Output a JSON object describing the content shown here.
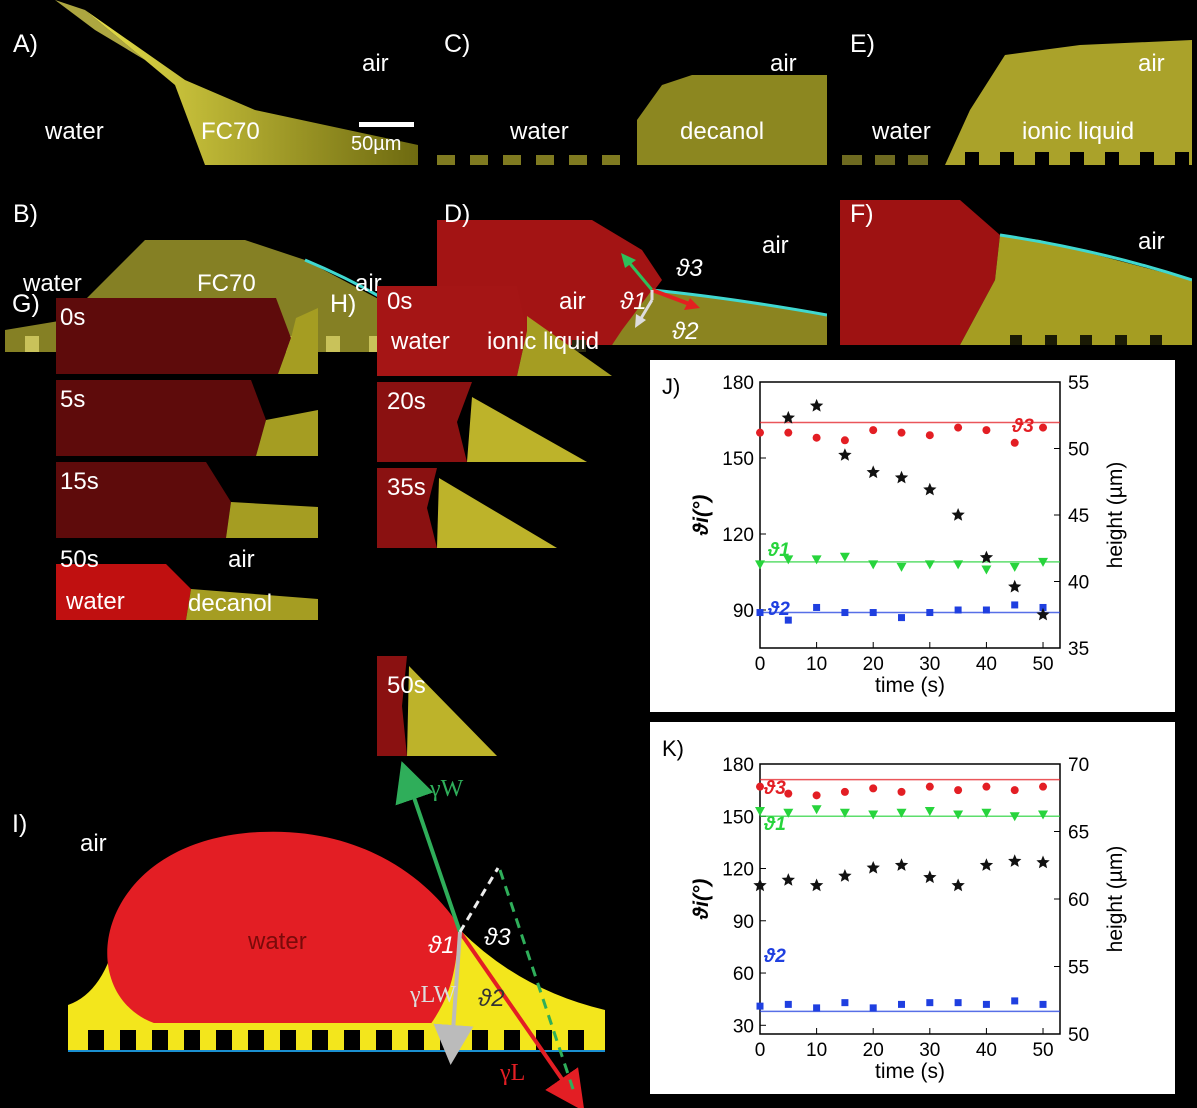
{
  "panels": {
    "A": {
      "label": "A)",
      "left_text": "water",
      "center_text": "FC70",
      "right_text": "air",
      "scale": "50µm"
    },
    "B": {
      "label": "B)",
      "left_text": "water",
      "center_text": "FC70",
      "right_text": "air"
    },
    "C": {
      "label": "C)",
      "left_text": "water",
      "center_text": "decanol",
      "right_text": "air"
    },
    "D": {
      "label": "D)",
      "right_text": "air",
      "t1": "ϑ1",
      "t2": "ϑ2",
      "t3": "ϑ3"
    },
    "E": {
      "label": "E)",
      "left_text": "water",
      "center_text": "ionic liquid",
      "right_text": "air"
    },
    "F": {
      "label": "F)",
      "right_text": "air"
    },
    "G": {
      "label": "G)",
      "times": [
        "0s",
        "5s",
        "15s",
        "50s"
      ],
      "air": "air",
      "water": "water",
      "liquid": "decanol"
    },
    "H": {
      "label": "H)",
      "times": [
        "0s",
        "20s",
        "35s",
        "50s"
      ],
      "air": "air",
      "water": "water",
      "liquid": "ionic liquid"
    },
    "I": {
      "label": "I)",
      "air": "air",
      "water": "water",
      "t1": "ϑ1",
      "t2": "ϑ2",
      "t3": "ϑ3",
      "gw": "γW",
      "glw": "γLW",
      "gl": "γL"
    }
  },
  "colors": {
    "red": "#e31e24",
    "yellow": "#f3e61c",
    "green": "#2fae5a",
    "gray": "#aaaaaa"
  },
  "chart_data": [
    {
      "panel": "J)",
      "type": "scatter",
      "xlabel": "time (s)",
      "ylabel": "ϑi(°)",
      "y2label": "height (µm)",
      "xlim": [
        0,
        53
      ],
      "ylim": [
        75,
        180
      ],
      "y2lim": [
        35,
        55
      ],
      "xticks": [
        0,
        10,
        20,
        30,
        40,
        50
      ],
      "yticks": [
        90,
        120,
        150,
        180
      ],
      "y2ticks": [
        35,
        40,
        45,
        50,
        55
      ],
      "series": [
        {
          "name": "ϑ3",
          "color": "#e31e24",
          "marker": "circle",
          "x": [
            0,
            5,
            10,
            15,
            20,
            25,
            30,
            35,
            40,
            45,
            50
          ],
          "y": [
            160,
            160,
            158,
            157,
            161,
            160,
            159,
            162,
            161,
            156,
            162
          ],
          "fit": 164
        },
        {
          "name": "ϑ1",
          "color": "#27d43c",
          "marker": "triangle",
          "x": [
            0,
            5,
            10,
            15,
            20,
            25,
            30,
            35,
            40,
            45,
            50
          ],
          "y": [
            108,
            110,
            110,
            111,
            108,
            107,
            108,
            108,
            106,
            107,
            109
          ],
          "fit": 109
        },
        {
          "name": "ϑ2",
          "color": "#1f3fe0",
          "marker": "square",
          "x": [
            0,
            5,
            10,
            15,
            20,
            25,
            30,
            35,
            40,
            45,
            50
          ],
          "y": [
            89,
            86,
            91,
            89,
            89,
            87,
            89,
            90,
            90,
            92,
            91
          ],
          "fit": 89
        },
        {
          "name": "",
          "color": "#111111",
          "marker": "star",
          "axis": "right",
          "x": [
            5,
            10,
            15,
            20,
            25,
            30,
            35,
            40,
            45,
            50
          ],
          "y": [
            52.3,
            53.2,
            49.5,
            48.2,
            47.8,
            46.9,
            45,
            41.8,
            39.6,
            37.5
          ]
        }
      ]
    },
    {
      "panel": "K)",
      "type": "scatter",
      "xlabel": "time (s)",
      "ylabel": "ϑi(°)",
      "y2label": "height (µm)",
      "xlim": [
        0,
        53
      ],
      "ylim": [
        25,
        180
      ],
      "y2lim": [
        50,
        70
      ],
      "xticks": [
        0,
        10,
        20,
        30,
        40,
        50
      ],
      "yticks": [
        30,
        60,
        90,
        120,
        150,
        180
      ],
      "y2ticks": [
        50,
        55,
        60,
        65,
        70
      ],
      "series": [
        {
          "name": "ϑ3",
          "color": "#e31e24",
          "marker": "circle",
          "x": [
            0,
            5,
            10,
            15,
            20,
            25,
            30,
            35,
            40,
            45,
            50
          ],
          "y": [
            167,
            163,
            162,
            164,
            166,
            164,
            167,
            165,
            167,
            165,
            167
          ],
          "fit": 171
        },
        {
          "name": "ϑ1",
          "color": "#27d43c",
          "marker": "triangle",
          "x": [
            0,
            5,
            10,
            15,
            20,
            25,
            30,
            35,
            40,
            45,
            50
          ],
          "y": [
            153,
            152,
            154,
            152,
            151,
            152,
            153,
            151,
            152,
            150,
            151
          ],
          "fit": 150
        },
        {
          "name": "ϑ2",
          "color": "#1f3fe0",
          "marker": "square",
          "x": [
            0,
            5,
            10,
            15,
            20,
            25,
            30,
            35,
            40,
            45,
            50
          ],
          "y": [
            41,
            42,
            40,
            43,
            40,
            42,
            43,
            43,
            42,
            44,
            42
          ],
          "fit": 38
        },
        {
          "name": "",
          "color": "#111111",
          "marker": "star",
          "axis": "right",
          "x": [
            0,
            5,
            10,
            15,
            20,
            25,
            30,
            35,
            40,
            45,
            50
          ],
          "y": [
            61,
            61.4,
            61,
            61.7,
            62.3,
            62.5,
            61.6,
            61,
            62.5,
            62.8,
            62.7
          ]
        }
      ]
    }
  ]
}
